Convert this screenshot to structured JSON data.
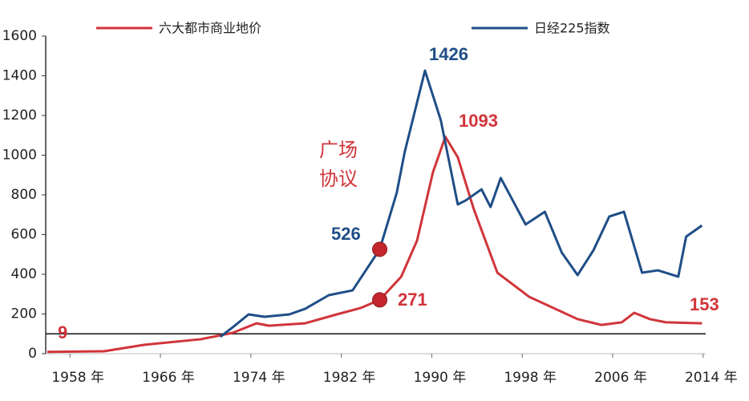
{
  "chart_data": {
    "type": "line",
    "legend": "top",
    "xlim": [
      1956,
      2016
    ],
    "ylim": [
      0,
      1600
    ],
    "yticks": [
      0,
      200,
      400,
      600,
      800,
      1000,
      1200,
      1400,
      1600
    ],
    "xticks": [
      {
        "value": 1958,
        "label": "1958 年"
      },
      {
        "value": 1966,
        "label": "1966 年"
      },
      {
        "value": 1974,
        "label": "1974 年"
      },
      {
        "value": 1982,
        "label": "1982 年"
      },
      {
        "value": 1990,
        "label": "1990 年"
      },
      {
        "value": 1998,
        "label": "1998 年"
      },
      {
        "value": 2006,
        "label": "2006 年"
      },
      {
        "value": 2014,
        "label": "2014 年"
      }
    ],
    "reference_line": 100,
    "series": [
      {
        "name": "六大都市商业地价",
        "color": "#d0353a",
        "x": [
          1956,
          1961,
          1964.6,
          1969.6,
          1972.4,
          1974.5,
          1975.6,
          1978.8,
          1981.6,
          1983.7,
          1985.4,
          1987.3,
          1988.7,
          1990.1,
          1991.2,
          1992.3,
          1993.7,
          1995.8,
          1998.6,
          2002.9,
          2005,
          2006.8,
          2007.9,
          2009.3,
          2010.7,
          2013.9
        ],
        "values": [
          9,
          12,
          45,
          73,
          105,
          153,
          141,
          153,
          198,
          230,
          271,
          388,
          570,
          913,
          1093,
          990,
          731,
          408,
          287,
          174,
          145,
          158,
          206,
          174,
          158,
          153
        ]
      },
      {
        "name": "日经225指数",
        "color": "#1f4e87",
        "x": [
          1971.3,
          1972.4,
          1973.8,
          1975.2,
          1977.4,
          1978.8,
          1980.9,
          1983,
          1985.4,
          1986.9,
          1987.6,
          1989.4,
          1990.8,
          1992.3,
          1993,
          1994.4,
          1995.2,
          1996.1,
          1998.3,
          2000,
          2001.5,
          2002.9,
          2004.3,
          2005.7,
          2007,
          2008.6,
          2010,
          2011.8,
          2012.5,
          2013.9
        ],
        "values": [
          85,
          133,
          198,
          186,
          198,
          226,
          295,
          319,
          526,
          810,
          1014,
          1426,
          1176,
          752,
          772,
          828,
          739,
          885,
          651,
          715,
          509,
          396,
          521,
          691,
          715,
          408,
          420,
          388,
          590,
          646
        ]
      }
    ],
    "annotations": [
      "9",
      "526",
      "271",
      "1426",
      "1093",
      "153",
      "广场",
      "协议"
    ]
  }
}
